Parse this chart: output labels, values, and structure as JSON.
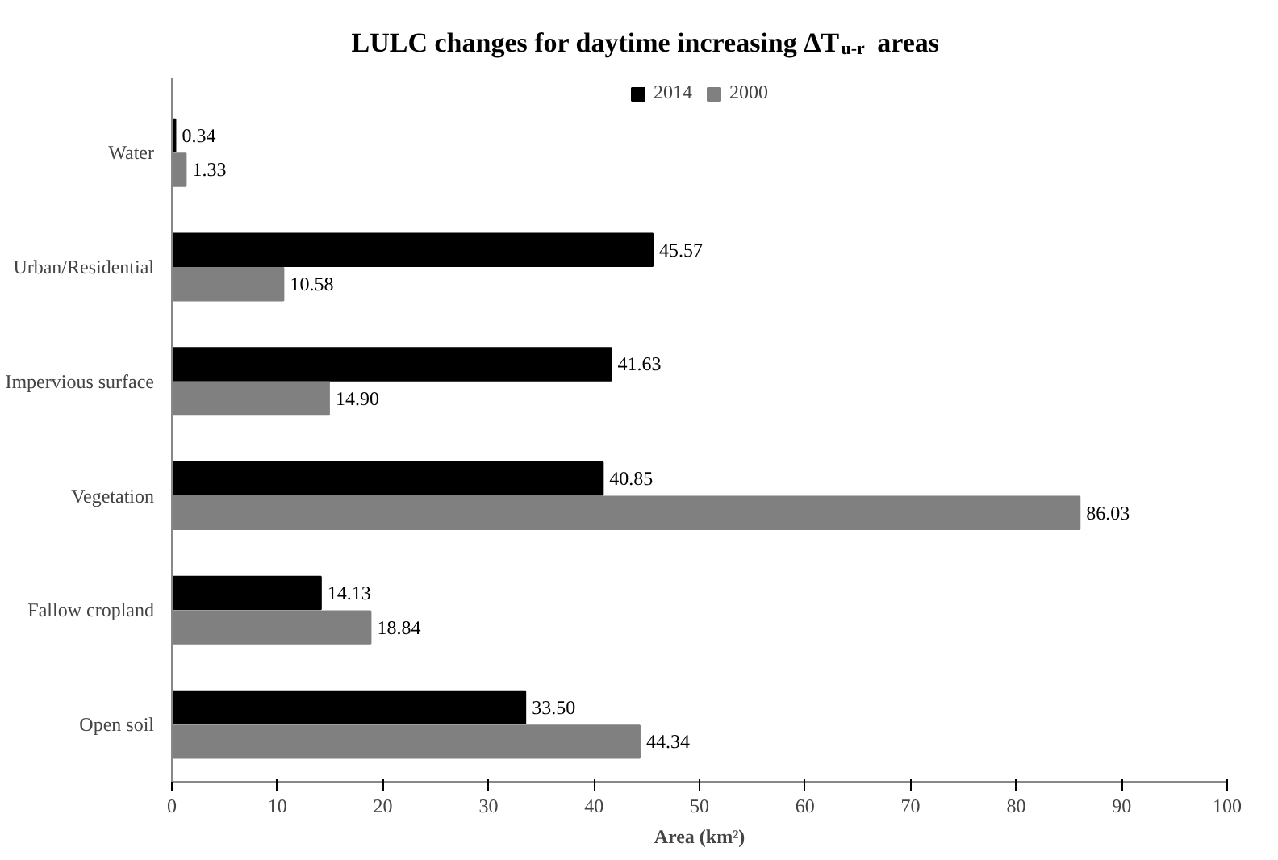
{
  "chart_data": {
    "type": "bar",
    "orientation": "horizontal",
    "title": "LULC changes for daytime increasing ΔT$_{u-r}$ areas",
    "xlabel": "Area (km²)",
    "categories": [
      "Water",
      "Urban/Residential",
      "Impervious surface",
      "Vegetation",
      "Fallow cropland",
      "Open soil"
    ],
    "series": [
      {
        "name": "2014",
        "color": "#000000",
        "values": [
          0.34,
          45.57,
          41.63,
          40.85,
          14.13,
          33.5
        ],
        "value_labels": [
          "0.34",
          "45.57",
          "41.63",
          "40.85",
          "14.13",
          "33.50"
        ]
      },
      {
        "name": "2000",
        "color": "#808080",
        "values": [
          1.33,
          10.58,
          14.9,
          86.03,
          18.84,
          44.34
        ],
        "value_labels": [
          "1.33",
          "10.58",
          "14.90",
          "86.03",
          "18.84",
          "44.34"
        ]
      }
    ],
    "xlim": [
      0,
      100
    ],
    "xticks": [
      0,
      10,
      20,
      30,
      40,
      50,
      60,
      70,
      80,
      90,
      100
    ],
    "grid": false,
    "legend": "top"
  }
}
